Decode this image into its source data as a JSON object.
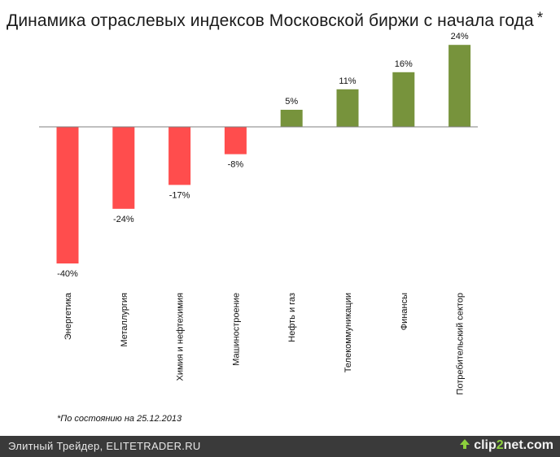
{
  "title": "Динамика отраслевых индексов Московской биржи с начала года",
  "title_mark": "*",
  "footnote": "*По состоянию на 25.12.2013",
  "footer": {
    "credit": "Элитный Трейдер, ELITETRADER.RU",
    "brand_prefix": "clip",
    "brand_two": "2",
    "brand_suffix": "net.com"
  },
  "colors": {
    "positive": "#77933c",
    "negative": "#ff4d4d",
    "axis": "#7f7f7f",
    "footer_bg": "#3a3a3a",
    "brand_accent": "#8ccf3c"
  },
  "chart_data": {
    "type": "bar",
    "title": "Динамика отраслевых индексов Московской биржи с начала года",
    "categories": [
      "Энергетика",
      "Металлургия",
      "Химия и нефтехимия",
      "Машиностроение",
      "Нефть и газ",
      "Телекоммуникации",
      "Финансы",
      "Потребительский сектор"
    ],
    "values": [
      -40,
      -24,
      -17,
      -8,
      5,
      11,
      16,
      24
    ],
    "data_labels": [
      "-40%",
      "-24%",
      "-17%",
      "-8%",
      "5%",
      "11%",
      "16%",
      "24%"
    ],
    "unit": "%",
    "ylim": [
      -40,
      24
    ],
    "grid": false,
    "legend": "none"
  }
}
